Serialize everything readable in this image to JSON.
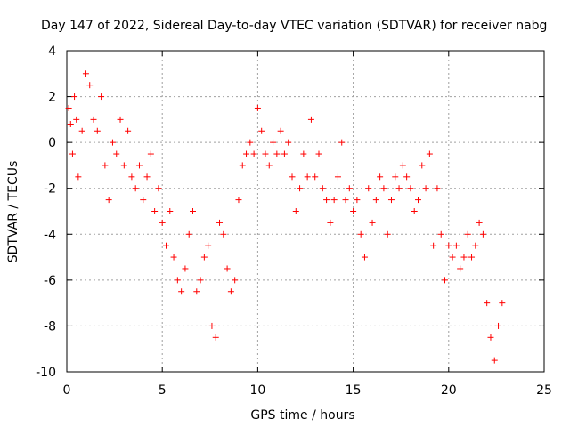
{
  "chart_data": {
    "type": "scatter",
    "title": "Day 147 of 2022, Sidereal Day-to-day VTEC variation (SDTVAR) for receiver nabg",
    "xlabel": "GPS time / hours",
    "ylabel": "SDTVAR / TECUs",
    "xlim": [
      0,
      25
    ],
    "ylim": [
      -10,
      4
    ],
    "xticks": [
      0,
      5,
      10,
      15,
      20,
      25
    ],
    "yticks": [
      -10,
      -8,
      -6,
      -4,
      -2,
      0,
      2,
      4
    ],
    "xtick_labels": [
      "0",
      "5",
      "10",
      "15",
      "20",
      "25"
    ],
    "ytick_labels": [
      "-10",
      "-8",
      "-6",
      "-4",
      "-2",
      "0",
      "2",
      "4"
    ],
    "grid": true,
    "marker": "+",
    "series": [
      {
        "name": "SDTVAR",
        "color": "#ff0000",
        "x": [
          0.1,
          0.2,
          0.3,
          0.4,
          0.5,
          0.6,
          0.8,
          1.0,
          1.2,
          1.4,
          1.6,
          1.8,
          2.0,
          2.2,
          2.4,
          2.6,
          2.8,
          3.0,
          3.2,
          3.4,
          3.6,
          3.8,
          4.0,
          4.2,
          4.4,
          4.6,
          4.8,
          5.0,
          5.2,
          5.4,
          5.6,
          5.8,
          6.0,
          6.2,
          6.4,
          6.6,
          6.8,
          7.0,
          7.2,
          7.4,
          7.6,
          7.8,
          8.0,
          8.2,
          8.4,
          8.6,
          8.8,
          9.0,
          9.2,
          9.4,
          9.6,
          9.8,
          10.0,
          10.2,
          10.4,
          10.6,
          10.8,
          11.0,
          11.2,
          11.4,
          11.6,
          11.8,
          12.0,
          12.2,
          12.4,
          12.6,
          12.8,
          13.0,
          13.2,
          13.4,
          13.6,
          13.8,
          14.0,
          14.2,
          14.4,
          14.6,
          14.8,
          15.0,
          15.2,
          15.4,
          15.6,
          15.8,
          16.0,
          16.2,
          16.4,
          16.6,
          16.8,
          17.0,
          17.2,
          17.4,
          17.6,
          17.8,
          18.0,
          18.2,
          18.4,
          18.6,
          18.8,
          19.0,
          19.2,
          19.4,
          19.6,
          19.8,
          20.0,
          20.2,
          20.4,
          20.6,
          20.8,
          21.0,
          21.2,
          21.4,
          21.6,
          21.8,
          22.0,
          22.2,
          22.4,
          22.6,
          22.8
        ],
        "y": [
          1.5,
          0.8,
          -0.5,
          2.0,
          1.0,
          -1.5,
          0.5,
          3.0,
          2.5,
          1.0,
          0.5,
          2.0,
          -1.0,
          -2.5,
          0.0,
          -0.5,
          1.0,
          -1.0,
          0.5,
          -1.5,
          -2.0,
          -1.0,
          -2.5,
          -1.5,
          -0.5,
          -3.0,
          -2.0,
          -3.5,
          -4.5,
          -3.0,
          -5.0,
          -6.0,
          -6.5,
          -5.5,
          -4.0,
          -3.0,
          -6.5,
          -6.0,
          -5.0,
          -4.5,
          -8.0,
          -8.5,
          -3.5,
          -4.0,
          -5.5,
          -6.5,
          -6.0,
          -2.5,
          -1.0,
          -0.5,
          0.0,
          -0.5,
          1.5,
          0.5,
          -0.5,
          -1.0,
          0.0,
          -0.5,
          0.5,
          -0.5,
          0.0,
          -1.5,
          -3.0,
          -2.0,
          -0.5,
          -1.5,
          1.0,
          -1.5,
          -0.5,
          -2.0,
          -2.5,
          -3.5,
          -2.5,
          -1.5,
          0.0,
          -2.5,
          -2.0,
          -3.0,
          -2.5,
          -4.0,
          -5.0,
          -2.0,
          -3.5,
          -2.5,
          -1.5,
          -2.0,
          -4.0,
          -2.5,
          -1.5,
          -2.0,
          -1.0,
          -1.5,
          -2.0,
          -3.0,
          -2.5,
          -1.0,
          -2.0,
          -0.5,
          -4.5,
          -2.0,
          -4.0,
          -6.0,
          -4.5,
          -5.0,
          -4.5,
          -5.5,
          -5.0,
          -4.0,
          -5.0,
          -4.5,
          -3.5,
          -4.0,
          -7.0,
          -8.5,
          -9.5,
          -8.0,
          -7.0
        ]
      }
    ]
  }
}
